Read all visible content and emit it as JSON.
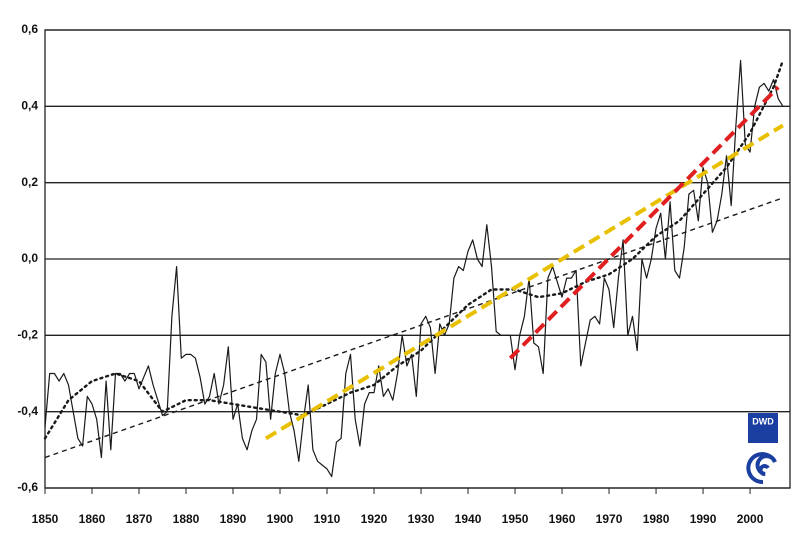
{
  "chart_data": {
    "type": "line",
    "xlim": [
      1850,
      2008.5
    ],
    "xticks": [
      1850,
      1860,
      1870,
      1880,
      1890,
      1900,
      1910,
      1920,
      1930,
      1940,
      1950,
      1960,
      1970,
      1980,
      1990,
      2000
    ],
    "ylim": [
      -0.6,
      0.6
    ],
    "yticks": [
      {
        "value": -0.6,
        "label": "-0,6"
      },
      {
        "value": -0.4,
        "label": "-0,4"
      },
      {
        "value": -0.2,
        "label": "-0,2"
      },
      {
        "value": 0,
        "label": "0,0"
      },
      {
        "value": 0.2,
        "label": "0,2"
      },
      {
        "value": 0.4,
        "label": "0,4"
      },
      {
        "value": 0.6,
        "label": "0,6"
      }
    ],
    "grid": true,
    "logo_text": "DWD",
    "series": [
      {
        "color": "#1a1a1a",
        "style": "solid",
        "x": [
          1850,
          1851,
          1852,
          1853,
          1854,
          1855,
          1856,
          1857,
          1858,
          1859,
          1860,
          1861,
          1862,
          1863,
          1864,
          1865,
          1866,
          1867,
          1868,
          1869,
          1870,
          1871,
          1872,
          1873,
          1874,
          1875,
          1876,
          1877,
          1878,
          1879,
          1880,
          1881,
          1882,
          1883,
          1884,
          1885,
          1886,
          1887,
          1888,
          1889,
          1890,
          1891,
          1892,
          1893,
          1894,
          1895,
          1896,
          1897,
          1898,
          1899,
          1900,
          1901,
          1902,
          1903,
          1904,
          1905,
          1906,
          1907,
          1908,
          1909,
          1910,
          1911,
          1912,
          1913,
          1914,
          1915,
          1916,
          1917,
          1918,
          1919,
          1920,
          1921,
          1922,
          1923,
          1924,
          1925,
          1926,
          1927,
          1928,
          1929,
          1930,
          1931,
          1932,
          1933,
          1934,
          1935,
          1936,
          1937,
          1938,
          1939,
          1940,
          1941,
          1942,
          1943,
          1944,
          1945,
          1946,
          1947,
          1948,
          1949,
          1950,
          1951,
          1952,
          1953,
          1954,
          1955,
          1956,
          1957,
          1958,
          1959,
          1960,
          1961,
          1962,
          1963,
          1964,
          1965,
          1966,
          1967,
          1968,
          1969,
          1970,
          1971,
          1972,
          1973,
          1974,
          1975,
          1976,
          1977,
          1978,
          1979,
          1980,
          1981,
          1982,
          1983,
          1984,
          1985,
          1986,
          1987,
          1988,
          1989,
          1990,
          1991,
          1992,
          1993,
          1994,
          1995,
          1996,
          1997,
          1998,
          1999,
          2000,
          2001,
          2002,
          2003,
          2004,
          2005,
          2006,
          2007
        ],
        "values": [
          -0.44,
          -0.3,
          -0.3,
          -0.32,
          -0.3,
          -0.33,
          -0.4,
          -0.47,
          -0.49,
          -0.36,
          -0.38,
          -0.42,
          -0.52,
          -0.32,
          -0.5,
          -0.3,
          -0.3,
          -0.32,
          -0.3,
          -0.3,
          -0.34,
          -0.31,
          -0.28,
          -0.33,
          -0.37,
          -0.41,
          -0.4,
          -0.15,
          -0.02,
          -0.26,
          -0.25,
          -0.25,
          -0.26,
          -0.31,
          -0.38,
          -0.36,
          -0.3,
          -0.38,
          -0.33,
          -0.23,
          -0.42,
          -0.38,
          -0.47,
          -0.5,
          -0.45,
          -0.42,
          -0.25,
          -0.27,
          -0.42,
          -0.3,
          -0.25,
          -0.3,
          -0.4,
          -0.45,
          -0.53,
          -0.42,
          -0.33,
          -0.5,
          -0.53,
          -0.54,
          -0.55,
          -0.57,
          -0.48,
          -0.47,
          -0.3,
          -0.25,
          -0.42,
          -0.49,
          -0.38,
          -0.35,
          -0.35,
          -0.28,
          -0.36,
          -0.34,
          -0.37,
          -0.3,
          -0.2,
          -0.28,
          -0.25,
          -0.36,
          -0.17,
          -0.15,
          -0.18,
          -0.3,
          -0.17,
          -0.2,
          -0.17,
          -0.05,
          -0.02,
          -0.03,
          0.02,
          0.05,
          0.0,
          -0.02,
          0.09,
          -0.02,
          -0.19,
          -0.2,
          -0.2,
          -0.2,
          -0.29,
          -0.2,
          -0.15,
          -0.05,
          -0.22,
          -0.23,
          -0.3,
          -0.05,
          -0.02,
          -0.06,
          -0.1,
          -0.05,
          -0.05,
          -0.03,
          -0.28,
          -0.22,
          -0.16,
          -0.15,
          -0.17,
          -0.05,
          -0.08,
          -0.18,
          -0.05,
          0.05,
          -0.2,
          -0.15,
          -0.24,
          0.0,
          -0.05,
          0.0,
          0.08,
          0.12,
          0.0,
          0.15,
          -0.03,
          -0.05,
          0.03,
          0.17,
          0.18,
          0.1,
          0.24,
          0.2,
          0.07,
          0.1,
          0.17,
          0.27,
          0.14,
          0.35,
          0.52,
          0.3,
          0.28,
          0.4,
          0.45,
          0.46,
          0.44,
          0.47,
          0.42,
          0.4
        ]
      },
      {
        "color": "#1a1a1a",
        "style": "dotted",
        "x": [
          1850,
          1855,
          1860,
          1865,
          1870,
          1875,
          1880,
          1885,
          1890,
          1895,
          1900,
          1905,
          1910,
          1915,
          1920,
          1925,
          1930,
          1935,
          1940,
          1945,
          1950,
          1955,
          1960,
          1965,
          1970,
          1975,
          1980,
          1985,
          1990,
          1995,
          2000,
          2005,
          2007
        ],
        "values": [
          -0.47,
          -0.37,
          -0.32,
          -0.3,
          -0.32,
          -0.4,
          -0.37,
          -0.37,
          -0.38,
          -0.39,
          -0.4,
          -0.41,
          -0.38,
          -0.35,
          -0.33,
          -0.28,
          -0.24,
          -0.18,
          -0.12,
          -0.08,
          -0.08,
          -0.1,
          -0.09,
          -0.06,
          -0.04,
          0.0,
          0.06,
          0.1,
          0.17,
          0.24,
          0.33,
          0.45,
          0.52
        ]
      },
      {
        "color": "#1a1a1a",
        "style": "dashed",
        "x": [
          1850,
          2007
        ],
        "values": [
          -0.52,
          0.16
        ]
      },
      {
        "color": "#e8c000",
        "style": "dashed",
        "x": [
          1897,
          2007
        ],
        "values": [
          -0.47,
          0.35
        ]
      },
      {
        "color": "#e02020",
        "style": "dashed",
        "x": [
          1949,
          2006
        ],
        "values": [
          -0.26,
          0.45
        ]
      }
    ]
  }
}
